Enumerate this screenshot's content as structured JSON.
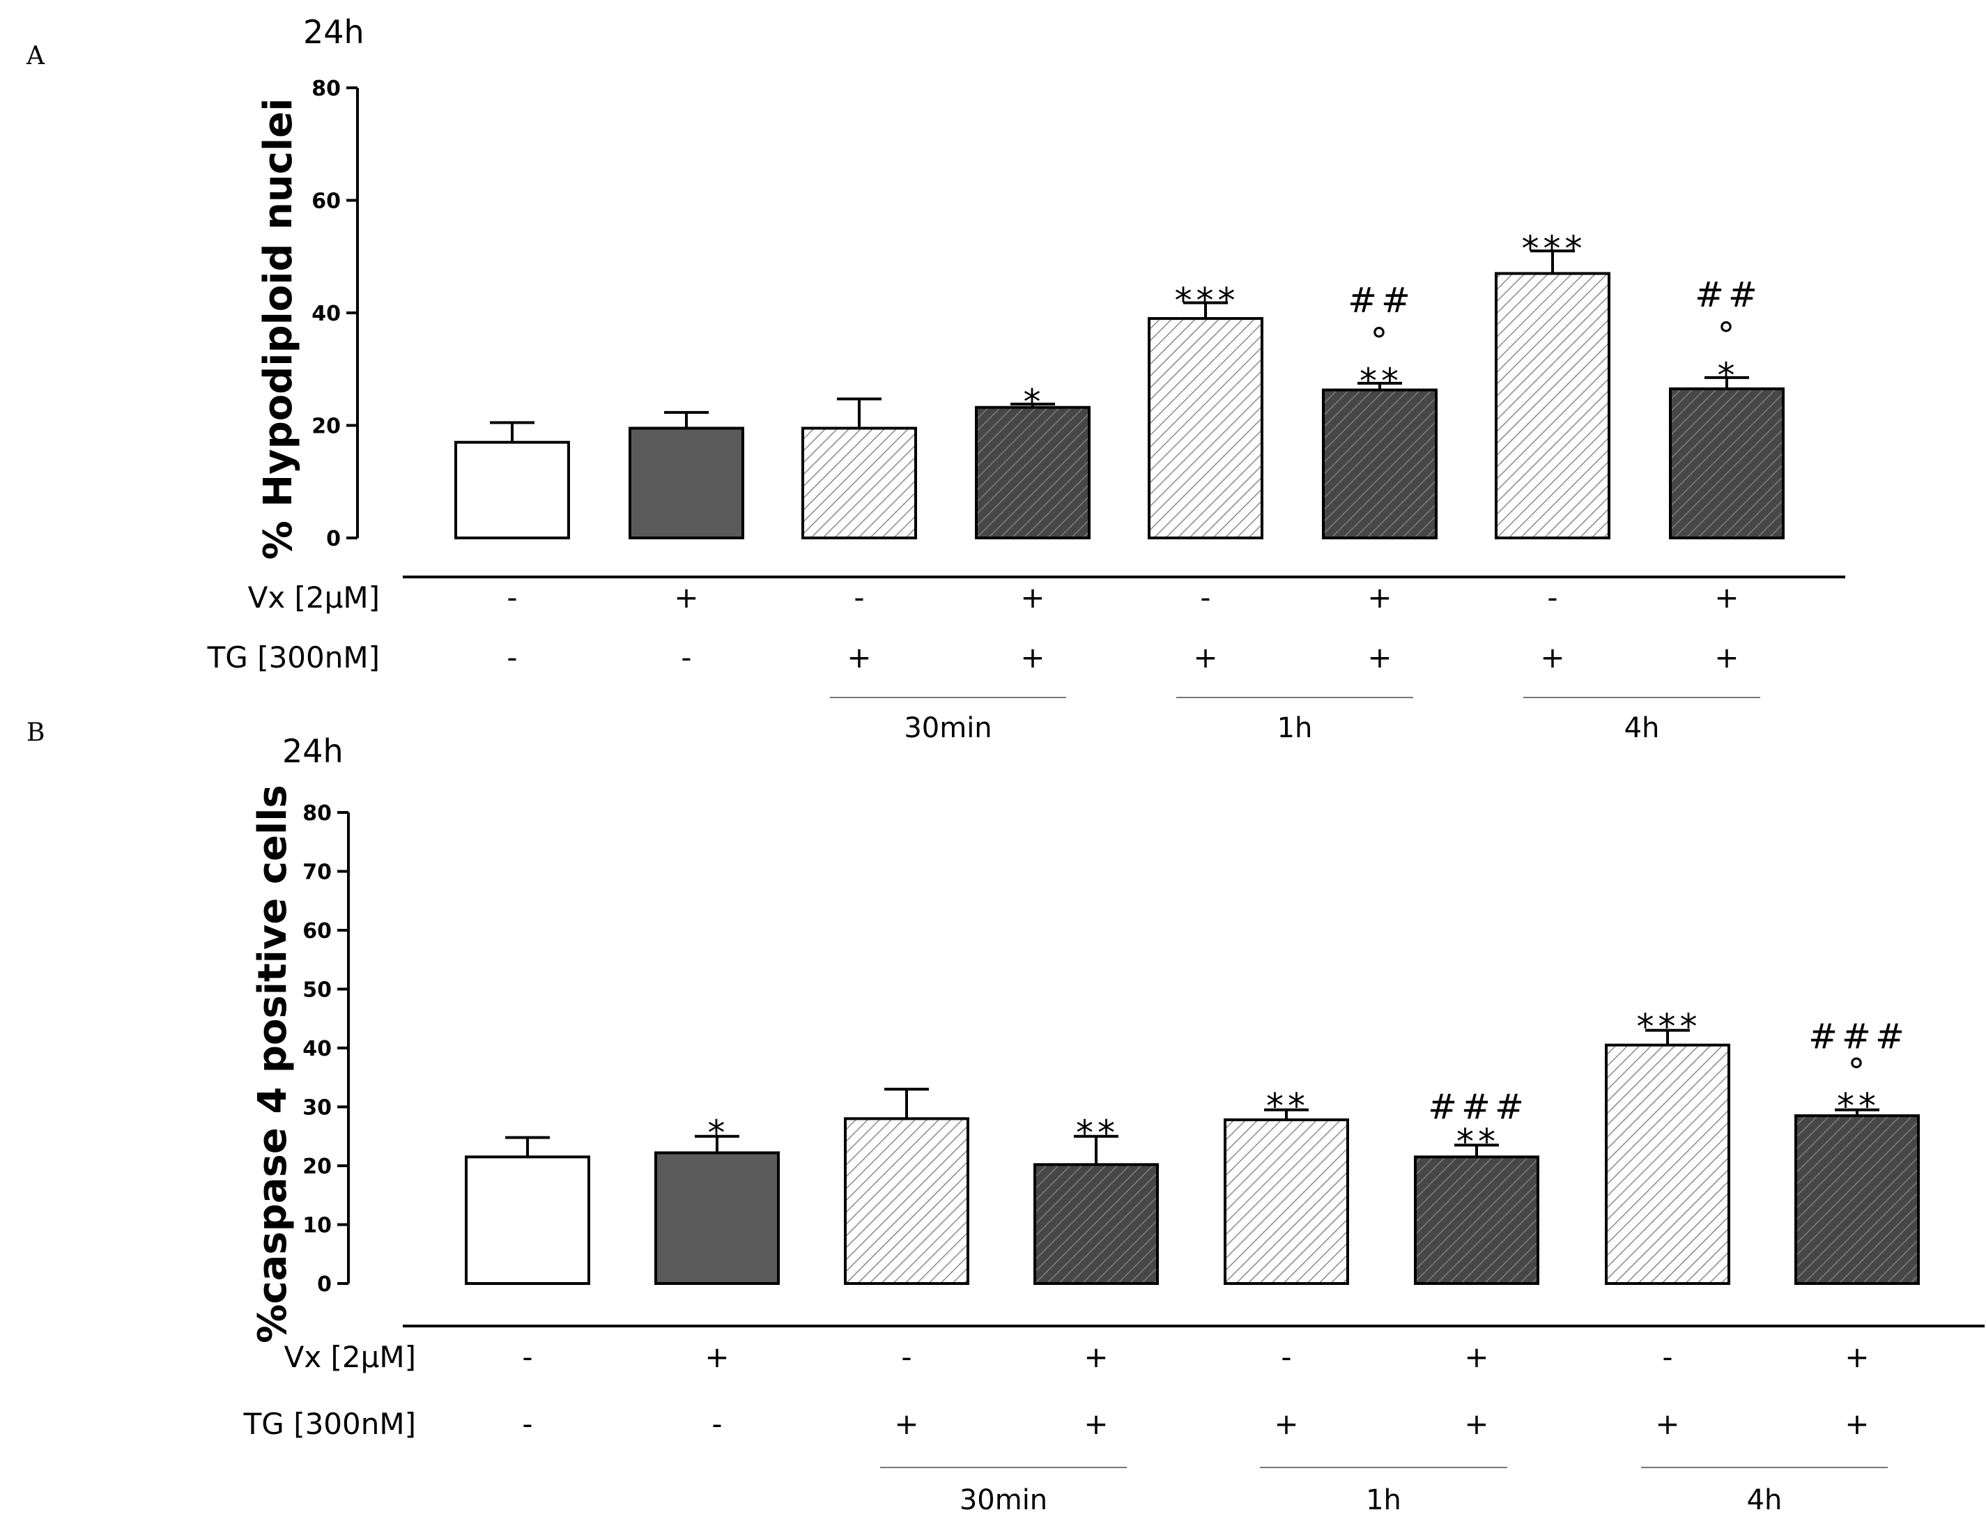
{
  "chart_data": [
    {
      "type": "bar",
      "panel": "A",
      "title": "24h",
      "ylabel": "% Hypodiploid nuclei",
      "ylim": [
        0,
        80
      ],
      "yticks": [
        0,
        20,
        40,
        60,
        80
      ],
      "values": [
        17,
        19.5,
        19.5,
        23.2,
        39,
        26.3,
        47,
        26.5
      ],
      "errors": [
        3.5,
        2.8,
        5.2,
        0.6,
        2.8,
        1.2,
        4,
        2
      ],
      "fills": [
        "white",
        "solid",
        "hatch-light",
        "hatch-dark",
        "hatch-light",
        "hatch-dark",
        "hatch-light",
        "hatch-dark"
      ],
      "significance": [
        "",
        "",
        "",
        "*",
        "***",
        "**\n°\n##",
        "***",
        "*\n°\n##"
      ],
      "conditions": [
        {
          "label": "Vx [2μM]",
          "values": [
            "-",
            "+",
            "-",
            "+",
            "-",
            "+",
            "-",
            "+"
          ]
        },
        {
          "label": "TG [300nM]",
          "values": [
            "-",
            "-",
            "+",
            "+",
            "+",
            "+",
            "+",
            "+"
          ]
        }
      ],
      "groups": [
        {
          "label": "30min",
          "from": 2,
          "to": 3
        },
        {
          "label": "1h",
          "from": 4,
          "to": 5
        },
        {
          "label": "4h",
          "from": 6,
          "to": 7
        }
      ],
      "grid": false,
      "legend": "none"
    },
    {
      "type": "bar",
      "panel": "B",
      "title": "24h",
      "ylabel": "%caspase 4 positive cells",
      "ylim": [
        0,
        80
      ],
      "yticks": [
        0,
        10,
        20,
        30,
        40,
        50,
        60,
        70,
        80
      ],
      "values": [
        21.5,
        22.2,
        28,
        20.2,
        27.8,
        21.5,
        40.5,
        28.5
      ],
      "errors": [
        3.3,
        2.8,
        5,
        4.8,
        1.7,
        2,
        2.5,
        1
      ],
      "fills": [
        "white",
        "solid",
        "hatch-light",
        "hatch-dark",
        "hatch-light",
        "hatch-dark",
        "hatch-light",
        "hatch-dark"
      ],
      "significance": [
        "",
        "*",
        "",
        "**",
        "**",
        "**\n###",
        "***",
        "**\n°\n###"
      ],
      "conditions": [
        {
          "label": "Vx [2μM]",
          "values": [
            "-",
            "+",
            "-",
            "+",
            "-",
            "+",
            "-",
            "+"
          ]
        },
        {
          "label": "TG [300nM]",
          "values": [
            "-",
            "-",
            "+",
            "+",
            "+",
            "+",
            "+",
            "+"
          ]
        }
      ],
      "groups": [
        {
          "label": "30min",
          "from": 2,
          "to": 3
        },
        {
          "label": "1h",
          "from": 4,
          "to": 5
        },
        {
          "label": "4h",
          "from": 6,
          "to": 7
        }
      ],
      "grid": false,
      "legend": "none"
    }
  ]
}
